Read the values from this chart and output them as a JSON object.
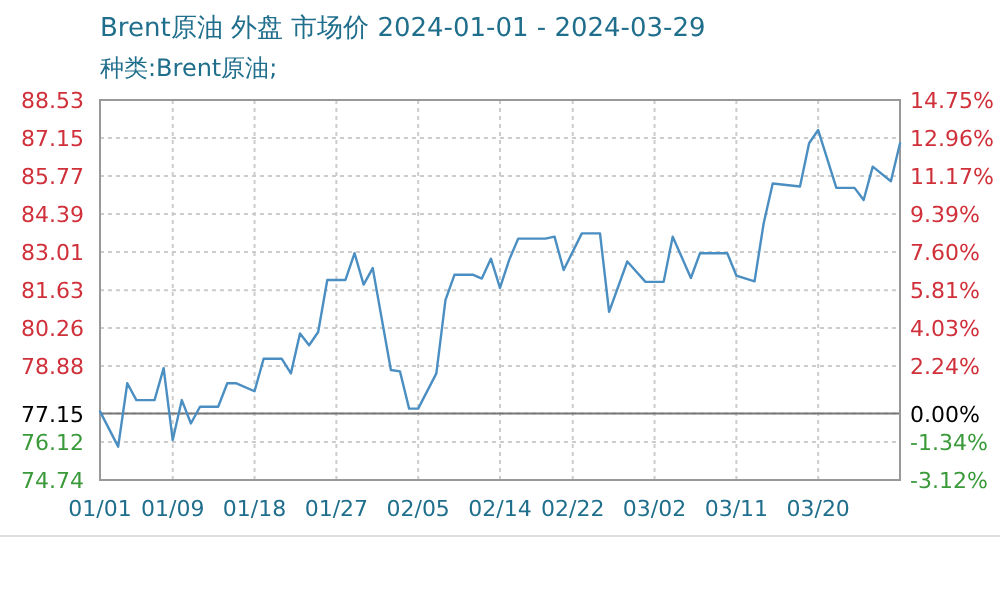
{
  "chart_data": {
    "type": "line",
    "title": "Brent原油 外盘 市场价 2024-01-01 - 2024-03-29",
    "subtitle": "种类:Brent原油;",
    "x": [
      "2024-01-01",
      "2024-01-03",
      "2024-01-04",
      "2024-01-05",
      "2024-01-07",
      "2024-01-08",
      "2024-01-09",
      "2024-01-10",
      "2024-01-11",
      "2024-01-12",
      "2024-01-14",
      "2024-01-15",
      "2024-01-16",
      "2024-01-18",
      "2024-01-19",
      "2024-01-21",
      "2024-01-22",
      "2024-01-23",
      "2024-01-24",
      "2024-01-25",
      "2024-01-26",
      "2024-01-28",
      "2024-01-29",
      "2024-01-30",
      "2024-01-31",
      "2024-02-02",
      "2024-02-03",
      "2024-02-04",
      "2024-02-05",
      "2024-02-07",
      "2024-02-08",
      "2024-02-09",
      "2024-02-11",
      "2024-02-12",
      "2024-02-13",
      "2024-02-14",
      "2024-02-15",
      "2024-02-16",
      "2024-02-19",
      "2024-02-20",
      "2024-02-21",
      "2024-02-23",
      "2024-02-25",
      "2024-02-26",
      "2024-02-28",
      "2024-03-01",
      "2024-03-03",
      "2024-03-04",
      "2024-03-06",
      "2024-03-07",
      "2024-03-10",
      "2024-03-11",
      "2024-03-13",
      "2024-03-14",
      "2024-03-15",
      "2024-03-18",
      "2024-03-19",
      "2024-03-20",
      "2024-03-22",
      "2024-03-24",
      "2024-03-25",
      "2024-03-26",
      "2024-03-28",
      "2024-03-29"
    ],
    "series": [
      {
        "color": "#4a8ec2",
        "values": [
          77.23,
          75.95,
          78.25,
          77.64,
          77.64,
          78.8,
          76.19,
          77.64,
          76.79,
          77.4,
          77.4,
          78.25,
          78.25,
          77.96,
          79.14,
          79.14,
          78.61,
          80.06,
          79.63,
          80.11,
          82.0,
          82.0,
          82.97,
          81.83,
          82.43,
          78.73,
          78.68,
          77.33,
          77.33,
          78.61,
          81.27,
          82.19,
          82.19,
          82.05,
          82.77,
          81.71,
          82.72,
          83.5,
          83.5,
          83.57,
          82.36,
          83.69,
          83.69,
          80.84,
          82.67,
          81.93,
          81.93,
          83.57,
          82.07,
          82.97,
          82.97,
          82.16,
          81.95,
          84.05,
          85.5,
          85.39,
          86.96,
          87.44,
          85.34,
          85.34,
          84.9,
          86.11,
          85.58,
          86.96
        ]
      }
    ],
    "xlim": [
      "2024-01-01",
      "2024-03-29"
    ],
    "xticks": [
      {
        "value": "2024-01-01",
        "label": "01/01"
      },
      {
        "value": "2024-01-09",
        "label": "01/09"
      },
      {
        "value": "2024-01-18",
        "label": "01/18"
      },
      {
        "value": "2024-01-27",
        "label": "01/27"
      },
      {
        "value": "2024-02-05",
        "label": "02/05"
      },
      {
        "value": "2024-02-14",
        "label": "02/14"
      },
      {
        "value": "2024-02-22",
        "label": "02/22"
      },
      {
        "value": "2024-03-02",
        "label": "03/02"
      },
      {
        "value": "2024-03-11",
        "label": "03/11"
      },
      {
        "value": "2024-03-20",
        "label": "03/20"
      }
    ],
    "ylim": [
      74.74,
      88.53
    ],
    "yticks": [
      88.53,
      87.15,
      85.77,
      84.39,
      83.01,
      81.63,
      80.26,
      78.88,
      77.15,
      76.12,
      74.74
    ],
    "y2lim": [
      -3.12,
      14.75
    ],
    "y2ticks": [
      {
        "value": 14.75,
        "label": "14.75%"
      },
      {
        "value": 12.96,
        "label": "12.96%"
      },
      {
        "value": 11.17,
        "label": "11.17%"
      },
      {
        "value": 9.39,
        "label": "9.39%"
      },
      {
        "value": 7.6,
        "label": "7.60%"
      },
      {
        "value": 5.81,
        "label": "5.81%"
      },
      {
        "value": 4.03,
        "label": "4.03%"
      },
      {
        "value": 2.24,
        "label": "2.24%"
      },
      {
        "value": 0,
        "label": "0.00%"
      },
      {
        "value": -1.34,
        "label": "-1.34%"
      },
      {
        "value": -3.12,
        "label": "-3.12%"
      }
    ],
    "ref_lines": [
      {
        "axis": "y",
        "value": 77.15,
        "color": "#777777"
      }
    ],
    "grid": true
  }
}
